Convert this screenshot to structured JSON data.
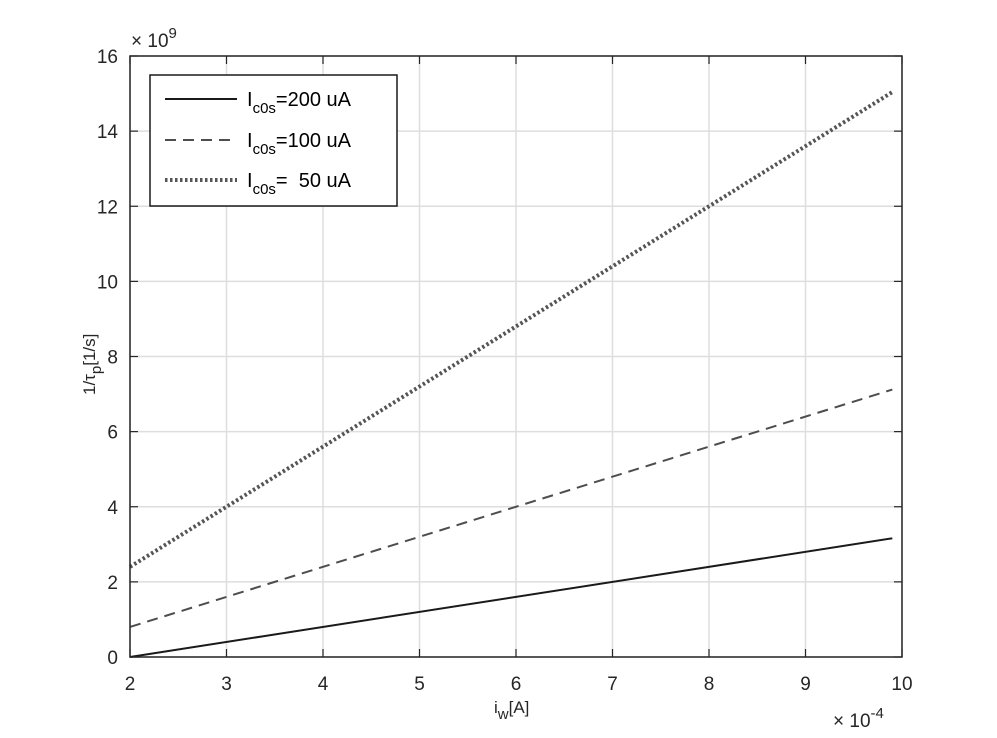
{
  "chart_data": {
    "type": "line",
    "x_multiplier_label": "× 10",
    "x_multiplier_exp": "-4",
    "y_multiplier_label": "× 10",
    "y_multiplier_exp": "9",
    "xlabel": {
      "main": "i",
      "sub": "w",
      "rest": "[A]"
    },
    "ylabel": {
      "main": "1/τ",
      "sub": "p",
      "rest": "[1/s]"
    },
    "xlim": [
      2,
      10
    ],
    "ylim": [
      0,
      16
    ],
    "xticks": [
      2,
      3,
      4,
      5,
      6,
      7,
      8,
      9,
      10
    ],
    "yticks": [
      0,
      2,
      4,
      6,
      8,
      10,
      12,
      14,
      16
    ],
    "grid": true,
    "legend_placement": "top-left",
    "series": [
      {
        "legend": {
          "main": "I",
          "sub": "c0s",
          "rest": "=200 uA"
        },
        "style": "solid",
        "color": "#1a1a1a",
        "x": [
          2,
          9.9
        ],
        "y": [
          0,
          3.16
        ]
      },
      {
        "legend": {
          "main": "I",
          "sub": "c0s",
          "rest": "=100 uA"
        },
        "style": "dashed",
        "color": "#4d4d4d",
        "x": [
          2,
          9.9
        ],
        "y": [
          0.8,
          7.12
        ]
      },
      {
        "legend": {
          "main": "I",
          "sub": "c0s",
          "rest": "=  50 uA"
        },
        "style": "dotted",
        "color": "#555555",
        "x": [
          2,
          9.9
        ],
        "y": [
          2.4,
          15.04
        ]
      }
    ]
  }
}
